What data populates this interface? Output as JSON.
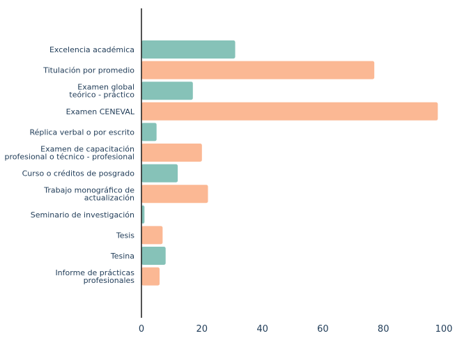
{
  "chart_data": {
    "type": "bar",
    "orientation": "horizontal",
    "title": "",
    "xlabel": "",
    "ylabel": "",
    "xlim": [
      0,
      100
    ],
    "x_ticks": [
      "0",
      "20",
      "40",
      "60",
      "80",
      "100"
    ],
    "grid": false,
    "legend": "none",
    "categories": [
      [
        "Excelencia académica"
      ],
      [
        "Titulación por promedio"
      ],
      [
        "Examen global",
        "teórico - práctico"
      ],
      [
        "Examen CENEVAL"
      ],
      [
        "Réplica verbal o por escrito"
      ],
      [
        "Examen de capacitación",
        "profesional o técnico - profesional"
      ],
      [
        "Curso o créditos de posgrado"
      ],
      [
        "Trabajo monográfico de",
        "actualización"
      ],
      [
        "Seminario de investigación"
      ],
      [
        "Tesis"
      ],
      [
        "Tesina"
      ],
      [
        "Informe de prácticas",
        "profesionales"
      ]
    ],
    "values": [
      31,
      77,
      17,
      98,
      5,
      20,
      12,
      22,
      1,
      7,
      8,
      6
    ],
    "bar_colors": [
      "#86c2b8",
      "#fbb894",
      "#86c2b8",
      "#fbb894",
      "#86c2b8",
      "#fbb894",
      "#86c2b8",
      "#fbb894",
      "#86c2b8",
      "#fbb894",
      "#86c2b8",
      "#fbb894"
    ]
  },
  "colors": {
    "teal": "#86c2b8",
    "peach": "#fbb894",
    "axis": "#1a1a1a",
    "text": "#1f3b57"
  }
}
